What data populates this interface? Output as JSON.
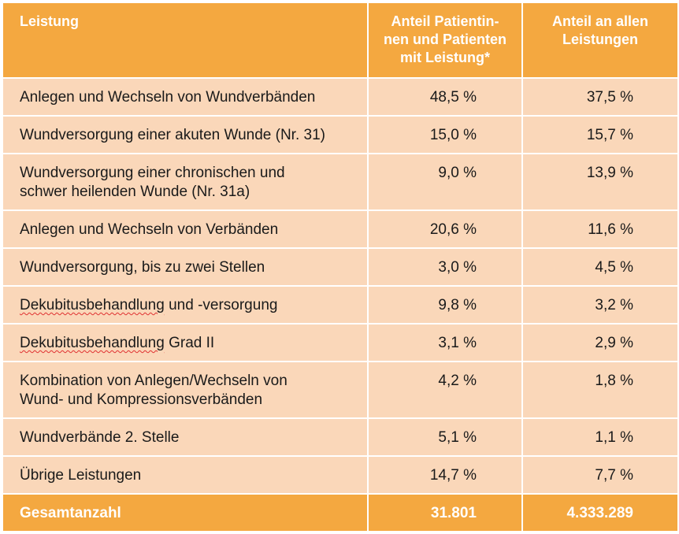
{
  "table": {
    "headers": {
      "leistung": "Leistung",
      "anteil_patienten": "Anteil Patientin-nen und Patienten mit Leistung*",
      "anteil_leistungen": "Anteil an allen Leistungen"
    },
    "rows": [
      {
        "leistung": "Anlegen und Wechseln von Wundverbänden",
        "anteil_patienten": "48,5 %",
        "anteil_leistungen": "37,5 %"
      },
      {
        "leistung": "Wundversorgung einer akuten Wunde (Nr. 31)",
        "anteil_patienten": "15,0 %",
        "anteil_leistungen": "15,7 %"
      },
      {
        "leistung": "Wundversorgung einer chronischen und schwer heilenden Wunde (Nr. 31a)",
        "anteil_patienten": "9,0 %",
        "anteil_leistungen": "13,9 %"
      },
      {
        "leistung": "Anlegen und Wechseln von Verbänden",
        "anteil_patienten": "20,6 %",
        "anteil_leistungen": "11,6 %"
      },
      {
        "leistung": "Wundversorgung, bis zu zwei Stellen",
        "anteil_patienten": "3,0 %",
        "anteil_leistungen": "4,5 %"
      },
      {
        "leistung_part1": "Dekubitusbehandlung",
        "leistung_part2": " und -versorgung",
        "anteil_patienten": "9,8 %",
        "anteil_leistungen": "3,2 %"
      },
      {
        "leistung_part1": "Dekubitusbehandlung",
        "leistung_part2": " Grad II",
        "anteil_patienten": "3,1 %",
        "anteil_leistungen": "2,9 %"
      },
      {
        "leistung": "Kombination von Anlegen/Wechseln von Wund- und Kompressionsverbänden",
        "anteil_patienten": "4,2 %",
        "anteil_leistungen": "1,8 %"
      },
      {
        "leistung": "Wundverbände 2. Stelle",
        "anteil_patienten": "5,1 %",
        "anteil_leistungen": "1,1 %"
      },
      {
        "leistung": "Übrige Leistungen",
        "anteil_patienten": "14,7 %",
        "anteil_leistungen": "7,7 %"
      }
    ],
    "footer": {
      "leistung": "Gesamtanzahl",
      "anteil_patienten": "31.801",
      "anteil_leistungen": "4.333.289"
    },
    "colors": {
      "header_bg": "#f4a840",
      "row_bg": "#fad7b9",
      "header_text": "#ffffff"
    }
  }
}
